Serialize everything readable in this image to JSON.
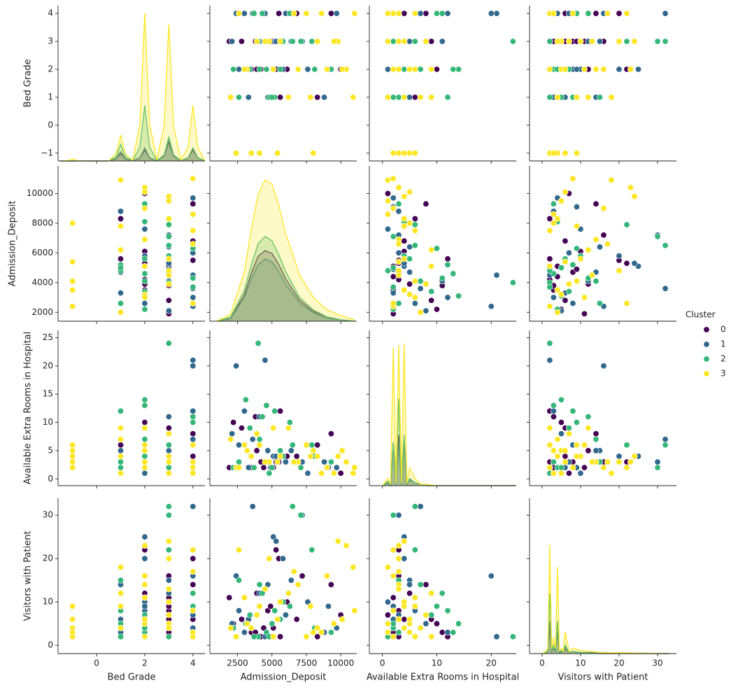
{
  "chart_data": {
    "type": "pairplot",
    "legend_title": "Cluster",
    "variables": [
      {
        "name": "Bed Grade",
        "xlim": [
          -1.6,
          4.5
        ],
        "xticks": [
          0,
          2,
          4
        ],
        "ylim": [
          -1.28,
          4.28
        ],
        "yticks": [
          {
            "value": -1,
            "label": "−1"
          },
          0,
          1,
          2,
          3,
          4
        ],
        "kde_x": [
          -1.5,
          -1.2,
          -1,
          -0.8,
          -0.5,
          0.5,
          0.8,
          1,
          1.2,
          1.5,
          1.8,
          2,
          2.2,
          2.5,
          2.8,
          3,
          3.2,
          3.5,
          3.8,
          4,
          4.2,
          4.5
        ],
        "kde_ylim": [
          0,
          4.2
        ]
      },
      {
        "name": "Admission_Deposit",
        "xlim": [
          490,
          11160
        ],
        "xticks": [
          2500,
          5000,
          7500,
          10000
        ],
        "ylim": [
          1400,
          11860
        ],
        "yticks": [
          2000,
          4000,
          6000,
          8000,
          10000
        ],
        "kde_x": [
          1000,
          2000,
          3000,
          3500,
          4000,
          4500,
          5000,
          5500,
          6000,
          7000,
          8000,
          9000,
          10000,
          11000
        ],
        "kde_ylim": [
          0,
          1.1
        ]
      },
      {
        "name": "Available Extra Rooms in Hospital",
        "xlim": [
          -2.4,
          24.6
        ],
        "xticks": [
          0,
          10,
          20
        ],
        "ylim": [
          -1.2,
          26.3
        ],
        "yticks": [
          0,
          5,
          10,
          15,
          20,
          25
        ],
        "kde_x": [
          0,
          1,
          1.5,
          2,
          2.5,
          3,
          3.5,
          4,
          4.5,
          5,
          6,
          7,
          8,
          10,
          24.5
        ],
        "kde_ylim": [
          0,
          1.07
        ]
      },
      {
        "name": "Visitors with Patient",
        "xlim": [
          -3.25,
          34.9
        ],
        "xticks": [
          0,
          10,
          20,
          30
        ],
        "ylim": [
          -1.9,
          33.9
        ],
        "yticks": [
          0,
          10,
          20,
          30
        ],
        "kde_x": [
          0,
          1,
          1.5,
          2,
          2.5,
          3,
          3.5,
          4,
          4.5,
          5,
          5.5,
          6,
          7,
          8,
          10,
          15,
          33
        ],
        "kde_ylim": [
          0,
          1.43
        ]
      }
    ],
    "series": [
      {
        "name": "0",
        "color": "#440154",
        "values": [
          [
            2,
            3,
            4,
            2,
            3,
            1,
            2,
            3,
            4,
            2,
            3,
            2,
            1,
            3,
            4,
            2,
            3,
            2,
            4,
            3
          ],
          [
            4200,
            5100,
            6800,
            3500,
            4700,
            5600,
            3900,
            7200,
            4400,
            6100,
            2800,
            5300,
            8300,
            4900,
            9300,
            2200,
            3800,
            10000,
            5500,
            1900
          ],
          [
            3,
            2,
            4,
            2,
            3,
            12,
            5,
            3,
            2,
            4,
            9,
            3,
            6,
            2,
            8,
            10,
            11,
            1,
            3,
            2
          ],
          [
            2,
            4,
            6,
            3,
            8,
            2,
            12,
            16,
            4,
            10,
            6,
            22,
            2,
            9,
            14,
            5,
            3,
            7,
            20,
            11
          ]
        ],
        "kde": [
          [
            0,
            0,
            0,
            0,
            0,
            0,
            0.05,
            0.2,
            0.05,
            0,
            0.08,
            0.3,
            0.08,
            0,
            0.13,
            0.5,
            0.13,
            0,
            0.08,
            0.3,
            0.08,
            0
          ],
          [
            0,
            0.02,
            0.19,
            0.34,
            0.46,
            0.5,
            0.48,
            0.4,
            0.3,
            0.15,
            0.07,
            0.03,
            0.01,
            0
          ],
          [
            0,
            0.02,
            0,
            0.3,
            0.01,
            0.35,
            0.01,
            0.3,
            0.01,
            0.04,
            0.02,
            0.01,
            0,
            0,
            0
          ],
          [
            0,
            0.01,
            0.02,
            0.25,
            0.02,
            0.05,
            0.02,
            0.2,
            0.01,
            0.02,
            0.01,
            0.05,
            0.01,
            0.02,
            0.01,
            0,
            0
          ]
        ]
      },
      {
        "name": "1",
        "color": "#31688e",
        "values": [
          [
            4,
            4,
            3,
            2,
            1,
            3,
            4,
            2,
            3,
            1,
            2,
            4,
            3,
            2,
            3,
            4,
            1,
            2,
            3,
            4
          ],
          [
            4500,
            2400,
            7200,
            5100,
            3300,
            6400,
            9700,
            2600,
            4100,
            8800,
            5800,
            3600,
            4900,
            7600,
            2100,
            6000,
            4700,
            9100,
            5300,
            3000
          ],
          [
            21,
            20,
            3,
            4,
            2,
            5,
            2,
            6,
            11,
            3,
            4,
            7,
            2,
            1,
            8,
            3,
            5,
            2,
            4,
            12
          ],
          [
            2,
            16,
            30,
            25,
            6,
            15,
            4,
            8,
            12,
            3,
            20,
            32,
            2,
            10,
            5,
            7,
            14,
            9,
            24,
            3
          ]
        ],
        "kde": [
          [
            0,
            0,
            0,
            0,
            0,
            0,
            0.06,
            0.25,
            0.06,
            0,
            0.09,
            0.35,
            0.09,
            0,
            0.14,
            0.55,
            0.14,
            0,
            0.09,
            0.35,
            0.09,
            0
          ],
          [
            0,
            0.02,
            0.17,
            0.3,
            0.4,
            0.44,
            0.42,
            0.35,
            0.26,
            0.13,
            0.06,
            0.02,
            0.01,
            0
          ],
          [
            0,
            0.02,
            0,
            0.28,
            0.01,
            0.3,
            0.01,
            0.3,
            0.01,
            0.04,
            0.02,
            0.01,
            0,
            0,
            0
          ],
          [
            0,
            0.01,
            0.02,
            0.3,
            0.02,
            0.05,
            0.02,
            0.2,
            0.01,
            0.02,
            0.01,
            0.06,
            0.01,
            0.02,
            0.01,
            0.01,
            0
          ]
        ]
      },
      {
        "name": "2",
        "color": "#35b779",
        "values": [
          [
            3,
            2,
            1,
            2,
            3,
            4,
            2,
            1,
            2,
            3,
            4,
            2,
            1,
            2,
            3,
            2,
            4,
            3,
            2,
            1
          ],
          [
            4000,
            3100,
            5200,
            4600,
            6500,
            3700,
            8100,
            2600,
            5600,
            7100,
            4300,
            9300,
            4800,
            3400,
            5800,
            2200,
            6300,
            7900,
            4100,
            5000
          ],
          [
            24,
            14,
            12,
            13,
            6,
            2,
            4,
            3,
            5,
            2,
            11,
            3,
            1,
            9,
            4,
            2,
            10,
            6,
            7,
            2
          ],
          [
            2,
            5,
            8,
            3,
            32,
            2,
            4,
            15,
            6,
            30,
            12,
            3,
            2,
            7,
            10,
            4,
            9,
            22,
            14,
            5
          ]
        ],
        "kde": [
          [
            0,
            0,
            0,
            0,
            0,
            0,
            0.11,
            0.45,
            0.11,
            0.01,
            0.38,
            1.5,
            0.38,
            0.01,
            0.16,
            0.65,
            0.16,
            0.01,
            0.09,
            0.35,
            0.09,
            0
          ],
          [
            0,
            0.03,
            0.22,
            0.4,
            0.55,
            0.6,
            0.57,
            0.47,
            0.35,
            0.17,
            0.08,
            0.03,
            0.01,
            0
          ],
          [
            0,
            0.03,
            0.01,
            0.3,
            0.01,
            0.6,
            0.01,
            0.35,
            0.01,
            0.05,
            0.02,
            0.01,
            0,
            0,
            0
          ],
          [
            0,
            0.01,
            0.03,
            0.55,
            0.03,
            0.08,
            0.03,
            0.3,
            0.02,
            0.03,
            0.01,
            0.08,
            0.01,
            0.02,
            0.01,
            0,
            0
          ]
        ]
      },
      {
        "name": "3",
        "color": "#fde725",
        "values": [
          [
            -1,
            -1,
            -1,
            -1,
            -1,
            1,
            2,
            3,
            4,
            1,
            2,
            3,
            4,
            2,
            3,
            1,
            2,
            3,
            4,
            2,
            3,
            4,
            1,
            2,
            3,
            2,
            4,
            3
          ],
          [
            2400,
            3500,
            4100,
            5400,
            8000,
            10900,
            10400,
            9800,
            11000,
            6200,
            3200,
            4800,
            7500,
            9000,
            5600,
            2000,
            6900,
            3900,
            8600,
            10100,
            4500,
            2600,
            7800,
            5100,
            9500,
            3000,
            6600,
            8300
          ],
          [
            2,
            4,
            6,
            3,
            5,
            1,
            3,
            4,
            2,
            9,
            5,
            3,
            6,
            2,
            4,
            7,
            3,
            8,
            1,
            5,
            3,
            2,
            4,
            9,
            1,
            6,
            3,
            4
          ],
          [
            2,
            4,
            9,
            6,
            3,
            18,
            23,
            24,
            8,
            12,
            5,
            20,
            2,
            16,
            10,
            4,
            14,
            7,
            3,
            6,
            13,
            22,
            9,
            2,
            5,
            11,
            17,
            4
          ]
        ],
        "kde": [
          [
            0,
            0.01,
            0.05,
            0.01,
            0,
            0,
            0.18,
            0.7,
            0.18,
            0.02,
            1.0,
            4.0,
            1.0,
            0.03,
            0.93,
            3.7,
            0.93,
            0.02,
            0.38,
            1.5,
            0.38,
            0
          ],
          [
            0,
            0.05,
            0.35,
            0.65,
            0.9,
            1.0,
            0.97,
            0.82,
            0.62,
            0.33,
            0.17,
            0.08,
            0.04,
            0.01
          ],
          [
            0,
            0.05,
            0.01,
            0.95,
            0.02,
            0.97,
            0.02,
            0.98,
            0.02,
            0.12,
            0.05,
            0.01,
            0.01,
            0,
            0
          ],
          [
            0,
            0.02,
            0.05,
            1.0,
            0.05,
            0.15,
            0.05,
            0.8,
            0.03,
            0.05,
            0.02,
            0.2,
            0.02,
            0.05,
            0.03,
            0.01,
            0
          ]
        ]
      }
    ]
  }
}
